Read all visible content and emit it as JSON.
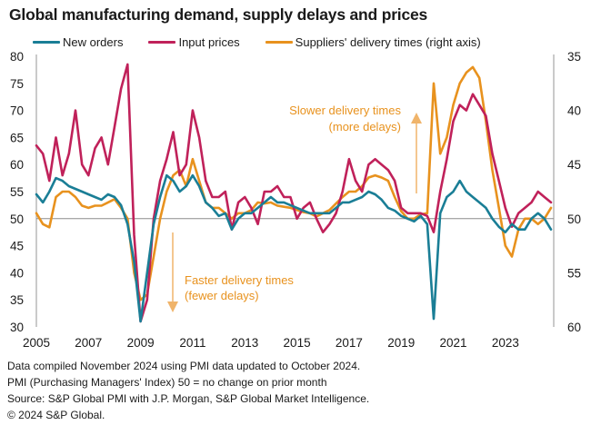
{
  "chart_data": {
    "type": "line",
    "title": "Global manufacturing demand, supply delays and prices",
    "xlabel": "",
    "ylabel": "",
    "y_left_lim": [
      30,
      80
    ],
    "y_left_ticks": [
      30,
      35,
      40,
      45,
      50,
      55,
      60,
      65,
      70,
      75,
      80
    ],
    "y_right_lim": [
      60,
      35
    ],
    "y_right_inverted": true,
    "y_right_ticks": [
      35,
      40,
      45,
      50,
      55,
      60
    ],
    "x_ticks": [
      "2005",
      "2007",
      "2009",
      "2011",
      "2013",
      "2015",
      "2017",
      "2019",
      "2021",
      "2023"
    ],
    "x_start": "2005-01",
    "x_end": "2024-10",
    "x_step_months": 3,
    "reference_line": 50,
    "grid": false,
    "legend_position": "top",
    "series": [
      {
        "name": "New orders",
        "axis": "left",
        "color": "#1a7e96",
        "values": [
          54.5,
          53,
          55,
          57.5,
          57,
          56,
          55.5,
          55,
          54.5,
          54,
          53.5,
          54.5,
          54,
          52.5,
          49,
          42,
          31,
          40,
          49,
          54,
          58,
          57,
          55,
          56,
          58,
          56,
          53,
          52,
          50.5,
          51,
          48,
          50,
          51,
          51,
          52,
          53,
          54,
          53,
          53,
          52.5,
          52,
          51.5,
          51,
          51,
          51,
          51,
          52,
          53,
          53,
          53.5,
          54,
          55,
          54.5,
          53.5,
          52,
          51.5,
          50.5,
          50,
          49.5,
          50.5,
          49,
          31.5,
          51,
          54,
          55,
          57,
          55,
          54,
          53,
          52,
          50,
          48.5,
          47.5,
          49,
          48,
          48,
          50,
          51,
          50,
          48
        ]
      },
      {
        "name": "Input prices",
        "axis": "left",
        "color": "#c0215a",
        "values": [
          63.5,
          62,
          57,
          65,
          58,
          62,
          70,
          60,
          58,
          63,
          65,
          60,
          67,
          74,
          78.5,
          47,
          31,
          35,
          50,
          57,
          61,
          66,
          58,
          60,
          70,
          65,
          57,
          54,
          54,
          55,
          48,
          53,
          54,
          52,
          49,
          55,
          55,
          56,
          54,
          54,
          50,
          52,
          53,
          50,
          47.5,
          49,
          51,
          55,
          61,
          57,
          55,
          60,
          61,
          60,
          59,
          57,
          52,
          51,
          51,
          51,
          50.5,
          47.5,
          55,
          61,
          68,
          71,
          70,
          73,
          71,
          69,
          62,
          57,
          52,
          48.5,
          51,
          52,
          53,
          55,
          54,
          53
        ]
      },
      {
        "name": "Suppliers' delivery times (right axis)",
        "axis": "right",
        "color": "#e8921e",
        "values": [
          49.5,
          50.5,
          50.8,
          48,
          47.5,
          47.5,
          48,
          48.8,
          49,
          48.8,
          48.8,
          48.5,
          48.2,
          49,
          50,
          55,
          57.5,
          57,
          53.5,
          50,
          47.5,
          46,
          45.5,
          47,
          44.5,
          46.5,
          48.5,
          49,
          49,
          49.5,
          50,
          49.5,
          49.5,
          49.2,
          48.5,
          48.6,
          48.5,
          48.8,
          48.9,
          49,
          49.2,
          49.4,
          49.5,
          49.8,
          49.5,
          49.2,
          48.6,
          48,
          47.5,
          47.5,
          47,
          46.2,
          46,
          46.2,
          46.5,
          48,
          49.3,
          50,
          50,
          49.6,
          49.5,
          37.5,
          44,
          42.5,
          39.5,
          37.5,
          36.5,
          36,
          37,
          41,
          45.5,
          49,
          52.5,
          53.5,
          51,
          50,
          50,
          50.5,
          50,
          49
        ]
      }
    ],
    "annotations": [
      {
        "text_line1": "Slower delivery times",
        "text_line2": "(more delays)",
        "arrow": "up"
      },
      {
        "text_line1": "Faster delivery times",
        "text_line2": "(fewer delays)",
        "arrow": "down"
      }
    ]
  },
  "footer": {
    "line1": "Data compiled November 2024 using PMI data updated to October 2024.",
    "line2": "PMI (Purchasing Managers' Index) 50 = no change on prior month",
    "line3": "Source: S&P Global  PMI with J.P. Morgan, S&P Global Market Intelligence.",
    "line4": "© 2024 S&P Global."
  },
  "colors": {
    "axis": "#a6a6a6",
    "reference_line": "#8c8c8c",
    "annotation": "#e8921e"
  }
}
